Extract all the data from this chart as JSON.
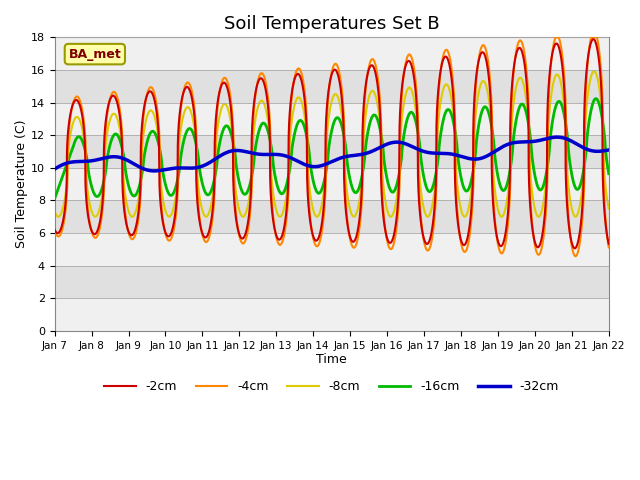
{
  "title": "Soil Temperatures Set B",
  "xlabel": "Time",
  "ylabel": "Soil Temperature (C)",
  "n_days": 15,
  "legend_labels": [
    "-2cm",
    "-4cm",
    "-8cm",
    "-16cm",
    "-32cm"
  ],
  "line_colors": [
    "#cc0000",
    "#ff8800",
    "#ddcc00",
    "#00bb00",
    "#0000cc"
  ],
  "line_widths": [
    1.5,
    1.5,
    1.5,
    2.0,
    2.5
  ],
  "tick_labels": [
    "Jan 7",
    "Jan 8",
    "Jan 9",
    "Jan 10",
    "Jan 11",
    "Jan 12",
    "Jan 13",
    "Jan 14",
    "Jan 15",
    "Jan 16",
    "Jan 17",
    "Jan 18",
    "Jan 19",
    "Jan 20",
    "Jan 21",
    "Jan 22"
  ],
  "ba_met_label": "BA_met",
  "bg_band_colors": [
    "#f0f0f0",
    "#e0e0e0"
  ],
  "title_fontsize": 13,
  "yticks": [
    0,
    2,
    4,
    6,
    8,
    10,
    12,
    14,
    16,
    18
  ],
  "ylim": [
    0,
    18
  ],
  "figsize": [
    6.4,
    4.8
  ],
  "dpi": 100
}
